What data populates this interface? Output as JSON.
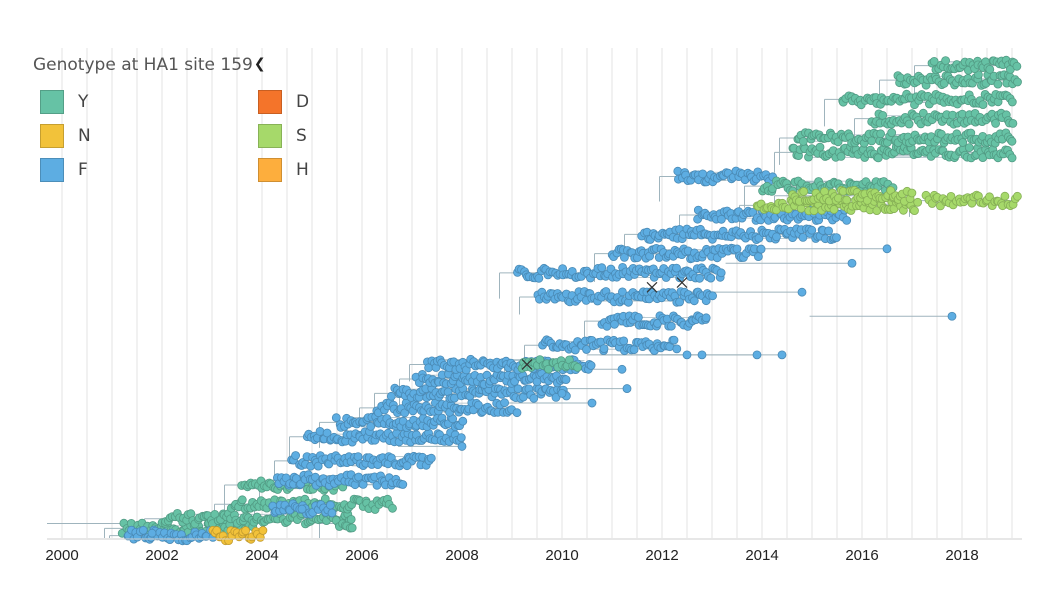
{
  "legend": {
    "title": "Genotype at HA1 site 159",
    "toggle_icon": "chevron-up-icon",
    "items": [
      {
        "label": "Y",
        "color": "#66C2A5"
      },
      {
        "label": "N",
        "color": "#F2C23A"
      },
      {
        "label": "F",
        "color": "#5DADE2"
      },
      {
        "label": "D",
        "color": "#F4742A"
      },
      {
        "label": "S",
        "color": "#A6D96A"
      },
      {
        "label": "H",
        "color": "#FDAE3D"
      }
    ]
  },
  "chart_data": {
    "type": "scatter",
    "description_kind": "phylogenetic time tree colored by genotype",
    "xlim": [
      1999.7,
      2019.2
    ],
    "x_ticks": [
      2000,
      2002,
      2004,
      2006,
      2008,
      2010,
      2012,
      2014,
      2016,
      2018
    ],
    "grid": true,
    "legend_position": "top-left",
    "series": [
      {
        "name": "Y",
        "color": "#66C2A5",
        "x_range": [
          2001.2,
          2019.1
        ],
        "clusters": [
          {
            "x": [
              2001.2,
              2003.8
            ],
            "y": 0.02
          },
          {
            "x": [
              2002.0,
              2005.8
            ],
            "y": 0.04
          },
          {
            "x": [
              2003.4,
              2006.6
            ],
            "y": 0.07
          },
          {
            "x": [
              2003.6,
              2005.6
            ],
            "y": 0.11
          },
          {
            "x": [
              2005.5,
              2005.8
            ],
            "y": 0.03
          },
          {
            "x": [
              2009.2,
              2010.3
            ],
            "y": 0.36
          },
          {
            "x": [
              2014.0,
              2016.6
            ],
            "y": 0.73
          },
          {
            "x": [
              2014.6,
              2019.0
            ],
            "y": 0.8
          },
          {
            "x": [
              2014.7,
              2019.0
            ],
            "y": 0.83
          },
          {
            "x": [
              2016.2,
              2019.0
            ],
            "y": 0.87
          },
          {
            "x": [
              2015.6,
              2019.0
            ],
            "y": 0.91
          },
          {
            "x": [
              2016.7,
              2019.1
            ],
            "y": 0.95
          },
          {
            "x": [
              2017.4,
              2019.1
            ],
            "y": 0.98
          }
        ]
      },
      {
        "name": "N",
        "color": "#F2C23A",
        "x_range": [
          2003.0,
          2004.0
        ],
        "clusters": [
          {
            "x": [
              2003.0,
              2004.0
            ],
            "y": 0.005
          }
        ]
      },
      {
        "name": "F",
        "color": "#5DADE2",
        "x_range": [
          2001.3,
          2017.8
        ],
        "clusters": [
          {
            "x": [
              2001.3,
              2003.0
            ],
            "y": 0.005
          },
          {
            "x": [
              2004.2,
              2005.4
            ],
            "y": 0.06
          },
          {
            "x": [
              2004.3,
              2006.8
            ],
            "y": 0.12
          },
          {
            "x": [
              2004.6,
              2007.4
            ],
            "y": 0.16
          },
          {
            "x": [
              2004.9,
              2008.0
            ],
            "y": 0.21
          },
          {
            "x": [
              2005.5,
              2008.0
            ],
            "y": 0.24
          },
          {
            "x": [
              2006.3,
              2009.0
            ],
            "y": 0.27
          },
          {
            "x": [
              2006.6,
              2010.1
            ],
            "y": 0.3
          },
          {
            "x": [
              2007.1,
              2010.1
            ],
            "y": 0.33
          },
          {
            "x": [
              2007.3,
              2010.6
            ],
            "y": 0.36
          },
          {
            "x": [
              2009.6,
              2012.3
            ],
            "y": 0.4
          },
          {
            "x": [
              2010.8,
              2012.9
            ],
            "y": 0.45
          },
          {
            "x": [
              2009.5,
              2013.0
            ],
            "y": 0.5
          },
          {
            "x": [
              2009.1,
              2013.2
            ],
            "y": 0.55
          },
          {
            "x": [
              2011.0,
              2014.0
            ],
            "y": 0.59
          },
          {
            "x": [
              2011.6,
              2015.5
            ],
            "y": 0.63
          },
          {
            "x": [
              2012.7,
              2015.7
            ],
            "y": 0.67
          },
          {
            "x": [
              2012.3,
              2014.2
            ],
            "y": 0.75
          }
        ]
      },
      {
        "name": "D",
        "color": "#F4742A",
        "x_range": [],
        "clusters": []
      },
      {
        "name": "S",
        "color": "#A6D96A",
        "x_range": [
          2013.9,
          2019.1
        ],
        "clusters": [
          {
            "x": [
              2013.9,
              2017.1
            ],
            "y": 0.69
          },
          {
            "x": [
              2014.6,
              2017.0
            ],
            "y": 0.71
          },
          {
            "x": [
              2017.3,
              2019.1
            ],
            "y": 0.7
          }
        ]
      },
      {
        "name": "H",
        "color": "#FDAE3D",
        "x_range": [],
        "clusters": []
      }
    ],
    "outlier_points": [
      {
        "x": 2017.8,
        "y": 0.46,
        "series": "F"
      },
      {
        "x": 2016.5,
        "y": 0.6,
        "series": "F"
      },
      {
        "x": 2015.8,
        "y": 0.57,
        "series": "F"
      },
      {
        "x": 2014.8,
        "y": 0.51,
        "series": "F"
      },
      {
        "x": 2014.4,
        "y": 0.38,
        "series": "F"
      },
      {
        "x": 2013.9,
        "y": 0.38,
        "series": "F"
      },
      {
        "x": 2012.8,
        "y": 0.38,
        "series": "F"
      },
      {
        "x": 2012.5,
        "y": 0.38,
        "series": "F"
      },
      {
        "x": 2011.3,
        "y": 0.31,
        "series": "F"
      },
      {
        "x": 2011.2,
        "y": 0.35,
        "series": "F"
      },
      {
        "x": 2010.6,
        "y": 0.28,
        "series": "F"
      },
      {
        "x": 2010.0,
        "y": 0.3,
        "series": "F"
      },
      {
        "x": 2009.1,
        "y": 0.26,
        "series": "F"
      },
      {
        "x": 2008.0,
        "y": 0.19,
        "series": "F"
      },
      {
        "x": 2006.9,
        "y": 0.15,
        "series": "F"
      },
      {
        "x": 2004.8,
        "y": 0.06,
        "series": "F"
      },
      {
        "x": 2001.8,
        "y": 0.01,
        "series": "F"
      }
    ],
    "markers": [
      {
        "symbol": "x",
        "x": 2009.3,
        "y": 0.36
      },
      {
        "symbol": "x",
        "x": 2011.8,
        "y": 0.52
      },
      {
        "symbol": "x",
        "x": 2012.4,
        "y": 0.53
      }
    ]
  }
}
